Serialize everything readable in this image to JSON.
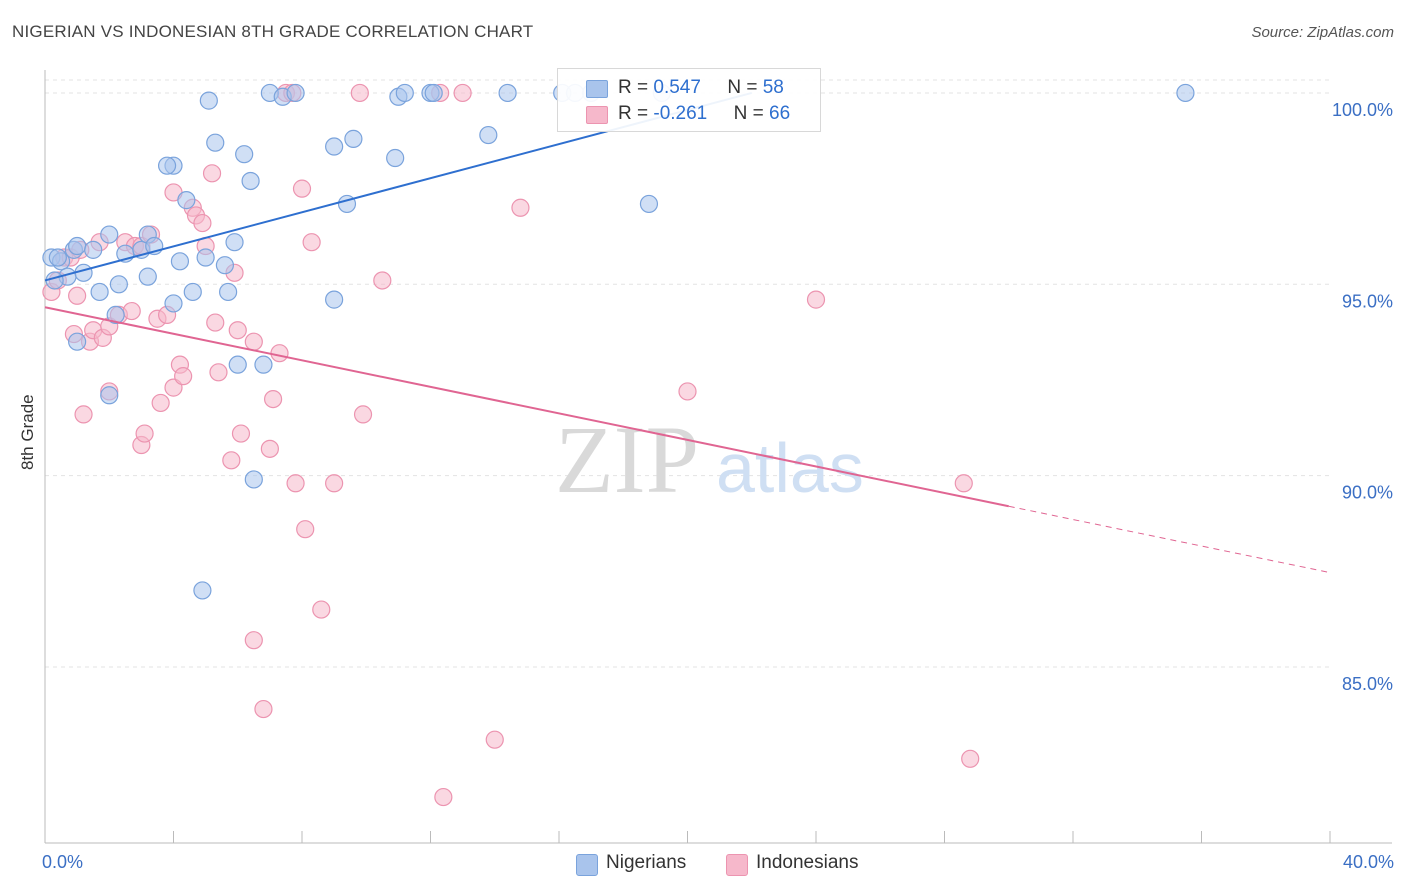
{
  "header": {
    "title": "NIGERIAN VS INDONESIAN 8TH GRADE CORRELATION CHART",
    "source": "Source: ZipAtlas.com"
  },
  "watermark": {
    "zip": "ZIP",
    "atlas": "atlas"
  },
  "legend": {
    "r_label": "R = ",
    "n_label": "N = ",
    "rows": [
      {
        "r": "0.547",
        "n": "58"
      },
      {
        "r": "-0.261",
        "n": "66"
      }
    ]
  },
  "bottom_legend": [
    "Nigerians",
    "Indonesians"
  ],
  "chart_data": {
    "type": "scatter",
    "title": "NIGERIAN VS INDONESIAN 8TH GRADE CORRELATION CHART",
    "xlabel": "",
    "ylabel": "8th Grade",
    "xlim": [
      0,
      40
    ],
    "ylim": [
      80.4,
      100.6
    ],
    "x_tick_labels": [
      "0.0%",
      "40.0%"
    ],
    "y_ticks": [
      85,
      90,
      95,
      100
    ],
    "y_tick_labels": [
      "85.0%",
      "90.0%",
      "95.0%",
      "100.0%"
    ],
    "grid": true,
    "legend_position": "top-center",
    "colors": {
      "nigerians_fill": "#a9c4ec",
      "nigerians_stroke": "#7aa3dc",
      "nigerians_line": "#2e6fcf",
      "indonesians_fill": "#f6b8cb",
      "indonesians_stroke": "#ec94b0",
      "indonesians_line": "#e06592",
      "axis_text": "#3b6fc4"
    },
    "series": [
      {
        "name": "Nigerians",
        "r": 0.547,
        "n": 58,
        "trend": {
          "x0": 0.0,
          "y0": 95.1,
          "x1": 22.0,
          "y1": 100.0,
          "dashed_to_x": null
        },
        "points": [
          [
            0.2,
            95.7
          ],
          [
            0.5,
            95.6
          ],
          [
            0.7,
            95.2
          ],
          [
            0.3,
            95.1
          ],
          [
            0.9,
            95.9
          ],
          [
            1.0,
            96.0
          ],
          [
            1.2,
            95.3
          ],
          [
            1.5,
            95.9
          ],
          [
            2.0,
            96.3
          ],
          [
            1.7,
            94.8
          ],
          [
            1.0,
            93.5
          ],
          [
            2.5,
            95.8
          ],
          [
            2.3,
            95.0
          ],
          [
            3.0,
            95.9
          ],
          [
            3.2,
            96.3
          ],
          [
            3.4,
            96.0
          ],
          [
            3.2,
            95.2
          ],
          [
            2.2,
            94.2
          ],
          [
            2.0,
            92.1
          ],
          [
            4.0,
            98.1
          ],
          [
            3.8,
            98.1
          ],
          [
            4.4,
            97.2
          ],
          [
            4.2,
            95.6
          ],
          [
            4.6,
            94.8
          ],
          [
            4.0,
            94.5
          ],
          [
            5.0,
            95.7
          ],
          [
            5.3,
            98.7
          ],
          [
            5.1,
            99.8
          ],
          [
            5.6,
            95.5
          ],
          [
            5.9,
            96.1
          ],
          [
            5.7,
            94.8
          ],
          [
            6.2,
            98.4
          ],
          [
            6.4,
            97.7
          ],
          [
            6.0,
            92.9
          ],
          [
            6.8,
            92.9
          ],
          [
            6.5,
            89.9
          ],
          [
            4.9,
            87.0
          ],
          [
            7.0,
            100.0
          ],
          [
            7.4,
            99.9
          ],
          [
            7.8,
            100.0
          ],
          [
            9.0,
            98.6
          ],
          [
            9.4,
            97.1
          ],
          [
            9.6,
            98.8
          ],
          [
            9.0,
            94.6
          ],
          [
            10.9,
            98.3
          ],
          [
            11.0,
            99.9
          ],
          [
            11.2,
            100.0
          ],
          [
            12.0,
            100.0
          ],
          [
            12.1,
            100.0
          ],
          [
            13.8,
            98.9
          ],
          [
            14.4,
            100.0
          ],
          [
            16.1,
            100.0
          ],
          [
            16.5,
            100.0
          ],
          [
            17.0,
            100.0
          ],
          [
            18.8,
            97.1
          ],
          [
            19.2,
            100.0
          ],
          [
            35.5,
            100.0
          ],
          [
            0.4,
            95.7
          ]
        ]
      },
      {
        "name": "Indonesians",
        "r": -0.261,
        "n": 66,
        "trend": {
          "x0": 0.0,
          "y0": 94.4,
          "x1": 30.0,
          "y1": 89.2,
          "dashed_to_x": 40.0
        },
        "points": [
          [
            0.2,
            94.8
          ],
          [
            0.4,
            95.1
          ],
          [
            0.6,
            95.7
          ],
          [
            0.8,
            95.7
          ],
          [
            1.0,
            94.7
          ],
          [
            1.1,
            95.9
          ],
          [
            0.9,
            93.7
          ],
          [
            1.4,
            93.5
          ],
          [
            1.5,
            93.8
          ],
          [
            1.2,
            91.6
          ],
          [
            1.8,
            93.6
          ],
          [
            2.0,
            93.9
          ],
          [
            1.7,
            96.1
          ],
          [
            2.0,
            92.2
          ],
          [
            2.3,
            94.2
          ],
          [
            2.5,
            96.1
          ],
          [
            2.7,
            94.3
          ],
          [
            2.8,
            96.0
          ],
          [
            3.0,
            96.0
          ],
          [
            3.0,
            90.8
          ],
          [
            3.1,
            91.1
          ],
          [
            3.5,
            94.1
          ],
          [
            3.3,
            96.3
          ],
          [
            3.6,
            91.9
          ],
          [
            3.8,
            94.2
          ],
          [
            4.0,
            92.3
          ],
          [
            4.0,
            97.4
          ],
          [
            4.2,
            92.9
          ],
          [
            4.3,
            92.6
          ],
          [
            4.6,
            97.0
          ],
          [
            4.7,
            96.8
          ],
          [
            4.9,
            96.6
          ],
          [
            5.0,
            96.0
          ],
          [
            5.2,
            97.9
          ],
          [
            5.3,
            94.0
          ],
          [
            5.4,
            92.7
          ],
          [
            5.8,
            90.4
          ],
          [
            6.0,
            93.8
          ],
          [
            5.9,
            95.3
          ],
          [
            6.1,
            91.1
          ],
          [
            6.5,
            93.5
          ],
          [
            6.5,
            85.7
          ],
          [
            6.8,
            83.9
          ],
          [
            7.0,
            90.7
          ],
          [
            7.1,
            92.0
          ],
          [
            7.3,
            93.2
          ],
          [
            7.5,
            100.0
          ],
          [
            7.7,
            100.0
          ],
          [
            7.8,
            89.8
          ],
          [
            8.0,
            97.5
          ],
          [
            8.1,
            88.6
          ],
          [
            8.3,
            96.1
          ],
          [
            8.6,
            86.5
          ],
          [
            9.0,
            89.8
          ],
          [
            9.8,
            100.0
          ],
          [
            9.9,
            91.6
          ],
          [
            10.5,
            95.1
          ],
          [
            12.3,
            100.0
          ],
          [
            12.4,
            81.6
          ],
          [
            13.0,
            100.0
          ],
          [
            14.0,
            83.1
          ],
          [
            14.8,
            97.0
          ],
          [
            20.0,
            92.2
          ],
          [
            24.0,
            94.6
          ],
          [
            28.8,
            82.6
          ],
          [
            28.6,
            89.8
          ]
        ]
      }
    ]
  }
}
